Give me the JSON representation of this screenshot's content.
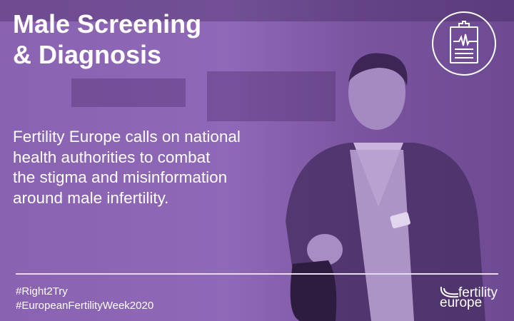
{
  "title_lines": [
    "Male Screening",
    "& Diagnosis"
  ],
  "body": [
    "Fertility Europe calls on national",
    "health authorities to combat",
    "the stigma and misinformation",
    "around male infertility."
  ],
  "hashtags": [
    "#Right2Try",
    "#EuropeanFertilityWeek2020"
  ],
  "logo": {
    "line1": "fertility",
    "line2": "europe"
  },
  "icon": "clipboard-heartbeat-icon",
  "colors": {
    "overlay": "#8a62b2",
    "text": "#ffffff"
  }
}
